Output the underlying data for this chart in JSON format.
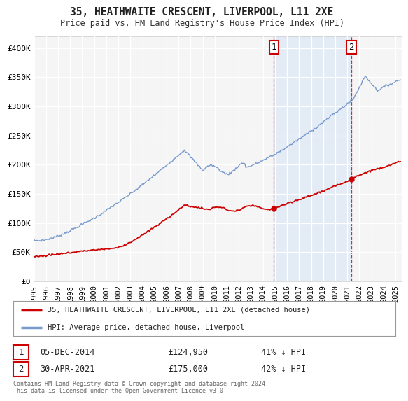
{
  "title": "35, HEATHWAITE CRESCENT, LIVERPOOL, L11 2XE",
  "subtitle": "Price paid vs. HM Land Registry's House Price Index (HPI)",
  "hpi_color": "#7799cc",
  "price_color": "#cc0000",
  "background_color": "#f5f5f5",
  "shading_color": "#dce8f5",
  "legend_entry1": "35, HEATHWAITE CRESCENT, LIVERPOOL, L11 2XE (detached house)",
  "legend_entry2": "HPI: Average price, detached house, Liverpool",
  "annotation1_date": "05-DEC-2014",
  "annotation1_price": "£124,950",
  "annotation1_pct": "41% ↓ HPI",
  "annotation2_date": "30-APR-2021",
  "annotation2_price": "£175,000",
  "annotation2_pct": "42% ↓ HPI",
  "footer": "Contains HM Land Registry data © Crown copyright and database right 2024.\nThis data is licensed under the Open Government Licence v3.0.",
  "ylim": [
    0,
    420000
  ],
  "yticks": [
    0,
    50000,
    100000,
    150000,
    200000,
    250000,
    300000,
    350000,
    400000
  ],
  "ytick_labels": [
    "£0",
    "£50K",
    "£100K",
    "£150K",
    "£200K",
    "£250K",
    "£300K",
    "£350K",
    "£400K"
  ],
  "sale1_x": 2014.92,
  "sale1_y": 124950,
  "sale2_x": 2021.33,
  "sale2_y": 175000,
  "xmin": 1995.0,
  "xmax": 2025.5
}
